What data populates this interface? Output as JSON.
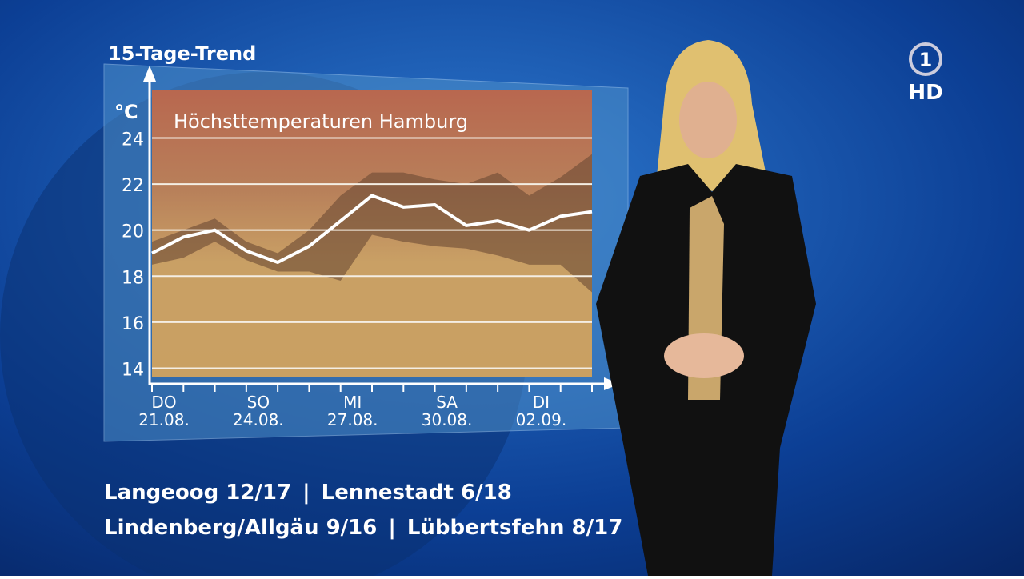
{
  "chart_data": {
    "type": "line",
    "header": "15-Tage-Trend",
    "title": "Höchsttemperaturen Hamburg",
    "y_unit": "°C",
    "categories": [
      "DO",
      null,
      null,
      "SO",
      null,
      null,
      "MI",
      null,
      null,
      "SA",
      null,
      null,
      "DI",
      null,
      null
    ],
    "dates": [
      "21.08.",
      null,
      null,
      "24.08.",
      null,
      null,
      "27.08.",
      null,
      null,
      "30.08.",
      null,
      null,
      "02.09.",
      null,
      null
    ],
    "series": [
      {
        "color": "#ffffff",
        "values": [
          19.0,
          19.7,
          20.0,
          19.1,
          18.6,
          19.3,
          20.4,
          21.5,
          21.0,
          21.1,
          20.2,
          20.4,
          20.0,
          20.6,
          20.8
        ]
      }
    ],
    "range": {
      "color": "#6b4a34",
      "low": [
        18.5,
        18.8,
        19.5,
        18.7,
        18.2,
        18.2,
        17.8,
        19.8,
        19.5,
        19.3,
        19.2,
        18.9,
        18.5,
        18.5,
        17.3
      ],
      "high": [
        19.5,
        20.0,
        20.5,
        19.5,
        19.0,
        20.0,
        21.5,
        22.5,
        22.5,
        22.2,
        22.0,
        22.5,
        21.5,
        22.3,
        23.3
      ]
    },
    "ylim": [
      13.6,
      26.1
    ],
    "yticks": [
      14,
      16,
      18,
      20,
      22,
      24
    ],
    "grid": true
  },
  "ticker": {
    "separator": "|",
    "lines": [
      [
        "Langeoog 12/17",
        "Lennestadt 6/18"
      ],
      [
        "Lindenberg/Allgäu 9/16",
        "Lübbertsfehn 8/17"
      ]
    ]
  },
  "logo": {
    "number": "1",
    "text": "HD"
  }
}
